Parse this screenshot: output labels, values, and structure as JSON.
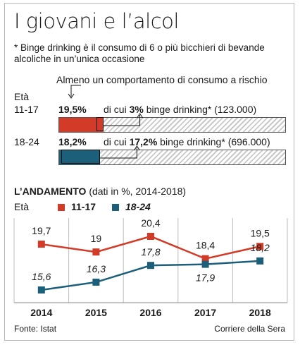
{
  "title": "I giovani e l’alcol",
  "note_line1": "* Binge drinking è il consumo di 6 o più bicchieri di bevande",
  "note_line2": "alcoliche in un’unica occasione",
  "callout": "Almeno un comportamento di consumo a rischio",
  "eta_label": "Età",
  "colors": {
    "red": "#d13b27",
    "blue": "#1c5f7a",
    "grid": "#bdbdbd",
    "text": "#1a1a1a"
  },
  "top_rows": [
    {
      "age": "11-17",
      "share_label": "19,5%",
      "share": 19.5,
      "binge_prefix": "di cui",
      "binge_label": "3%",
      "binge": 3,
      "binge_suffix": "binge drinking*",
      "count": "(123.000)",
      "color": "#d13b27"
    },
    {
      "age": "18-24",
      "share_label": "18,2%",
      "share": 18.2,
      "binge_prefix": "di cui",
      "binge_label": "17,2%",
      "binge": 17.2,
      "binge_suffix": "binge drinking*",
      "count": "(696.000)",
      "color": "#1c5f7a"
    }
  ],
  "andamento_title": "L’ANDAMENTO",
  "andamento_sub": "(dati in %, 2014-2018)",
  "legend": [
    {
      "name": "11-17",
      "color": "#d13b27"
    },
    {
      "name": "18-24",
      "color": "#1c5f7a"
    }
  ],
  "chart_data": {
    "type": "line",
    "x": [
      "2014",
      "2015",
      "2016",
      "2017",
      "2018"
    ],
    "series": [
      {
        "name": "11-17",
        "color": "#d13b27",
        "values": [
          19.7,
          19,
          20.4,
          18.4,
          19.5
        ],
        "labels": [
          "19,7",
          "19",
          "20,4",
          "18,4",
          "19,5"
        ]
      },
      {
        "name": "18-24",
        "color": "#1c5f7a",
        "values": [
          15.6,
          16.3,
          17.8,
          17.9,
          18.2
        ],
        "labels": [
          "15,6",
          "16,3",
          "17,8",
          "17,9",
          "18,2"
        ]
      }
    ],
    "ylim": [
      15,
      21
    ],
    "grid": "vertical"
  },
  "footer_source": "Fonte: Istat",
  "footer_publisher": "Corriere della Sera"
}
